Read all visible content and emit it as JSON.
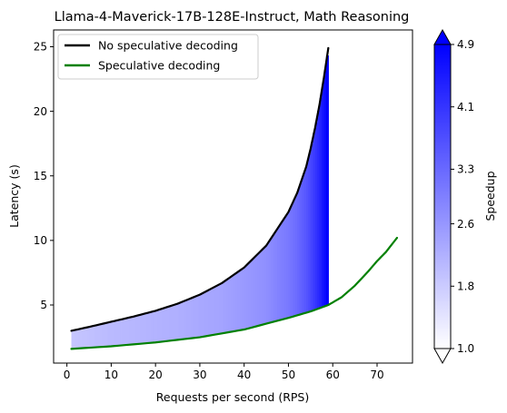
{
  "chart_data": {
    "type": "line",
    "title": "Llama-4-Maverick-17B-128E-Instruct, Math Reasoning",
    "xlabel": "Requests per second (RPS)",
    "ylabel": "Latency (s)",
    "xlim": [
      -3,
      78
    ],
    "ylim": [
      0.5,
      26.3
    ],
    "xticks": [
      "0",
      "10",
      "20",
      "30",
      "40",
      "50",
      "60",
      "70"
    ],
    "yticks": [
      "5",
      "10",
      "15",
      "20",
      "25"
    ],
    "legend_position": "top-left",
    "grid": false,
    "series": [
      {
        "name": "No speculative decoding",
        "color": "#000000",
        "x": [
          1,
          5,
          10,
          15,
          20,
          25,
          30,
          35,
          40,
          45,
          50,
          52,
          54,
          55,
          56,
          57,
          58,
          59
        ],
        "y": [
          3.0,
          3.3,
          3.7,
          4.1,
          4.55,
          5.1,
          5.8,
          6.7,
          7.9,
          9.6,
          12.2,
          13.7,
          15.7,
          17.1,
          18.7,
          20.5,
          22.6,
          24.9
        ]
      },
      {
        "name": "Speculative decoding",
        "color": "#008000",
        "x": [
          1,
          10,
          20,
          30,
          40,
          50,
          55,
          59,
          62,
          65,
          68,
          70,
          72,
          74.5
        ],
        "y": [
          1.6,
          1.8,
          2.1,
          2.5,
          3.1,
          4.0,
          4.5,
          5.0,
          5.6,
          6.5,
          7.6,
          8.4,
          9.1,
          10.2
        ]
      }
    ],
    "colorbar": {
      "label": "Speedup",
      "min": 1.0,
      "max": 4.9,
      "ticks": [
        "1.0",
        "1.8",
        "2.6",
        "3.3",
        "4.1",
        "4.9"
      ],
      "color_low": "#ffffff",
      "color_high": "#0000ff",
      "extend": "both"
    }
  }
}
